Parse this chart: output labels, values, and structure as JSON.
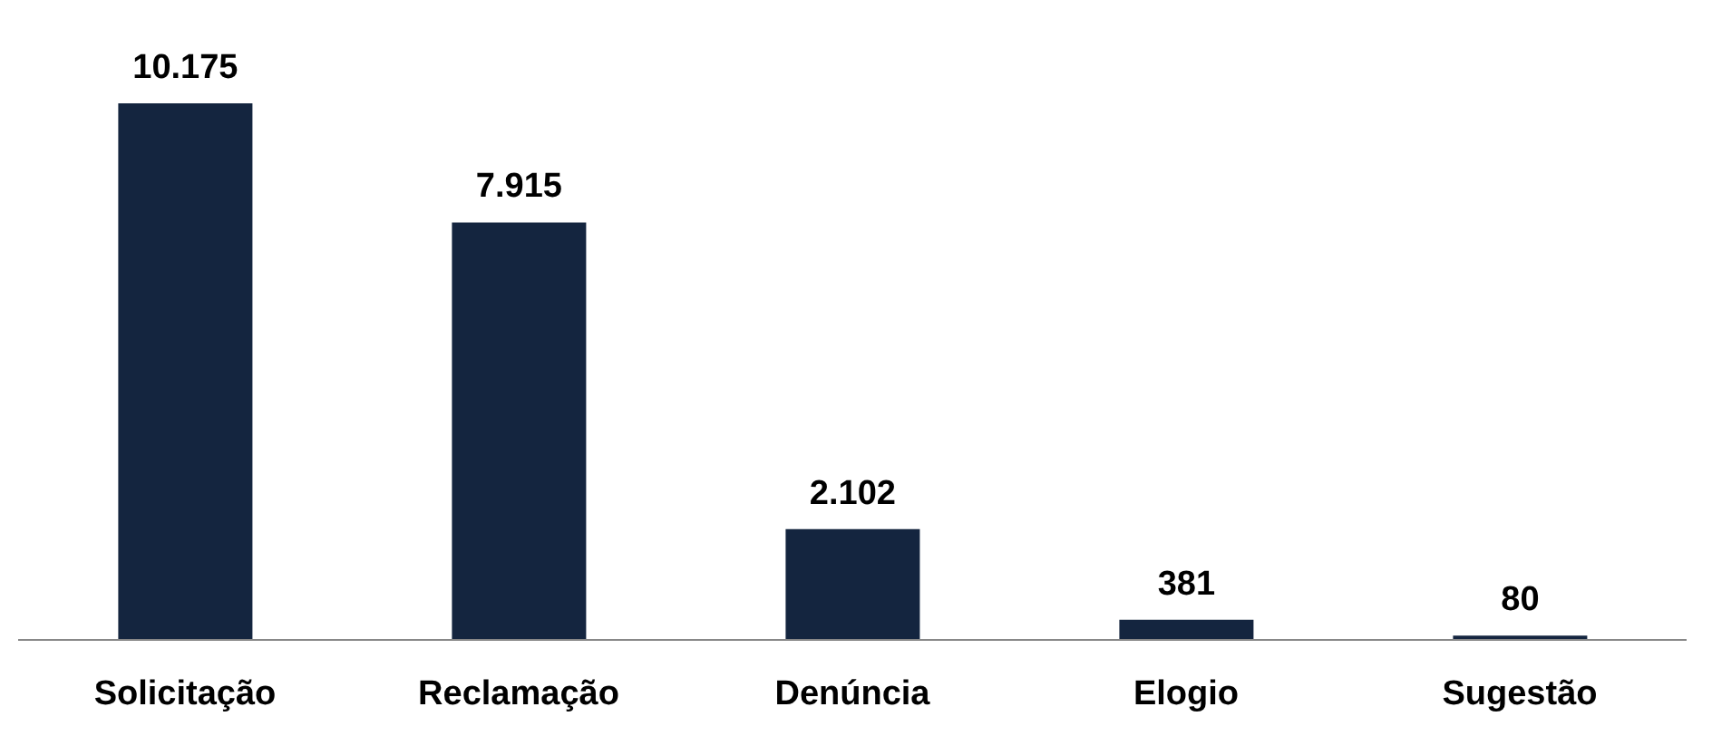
{
  "chart_data": {
    "type": "bar",
    "categories": [
      "Solicitação",
      "Reclamação",
      "Denúncia",
      "Elogio",
      "Sugestão"
    ],
    "values": [
      10175,
      7915,
      2102,
      381,
      80
    ],
    "value_labels": [
      "10.175",
      "7.915",
      "2.102",
      "381",
      "80"
    ],
    "color": "#14253f",
    "grid": false
  }
}
